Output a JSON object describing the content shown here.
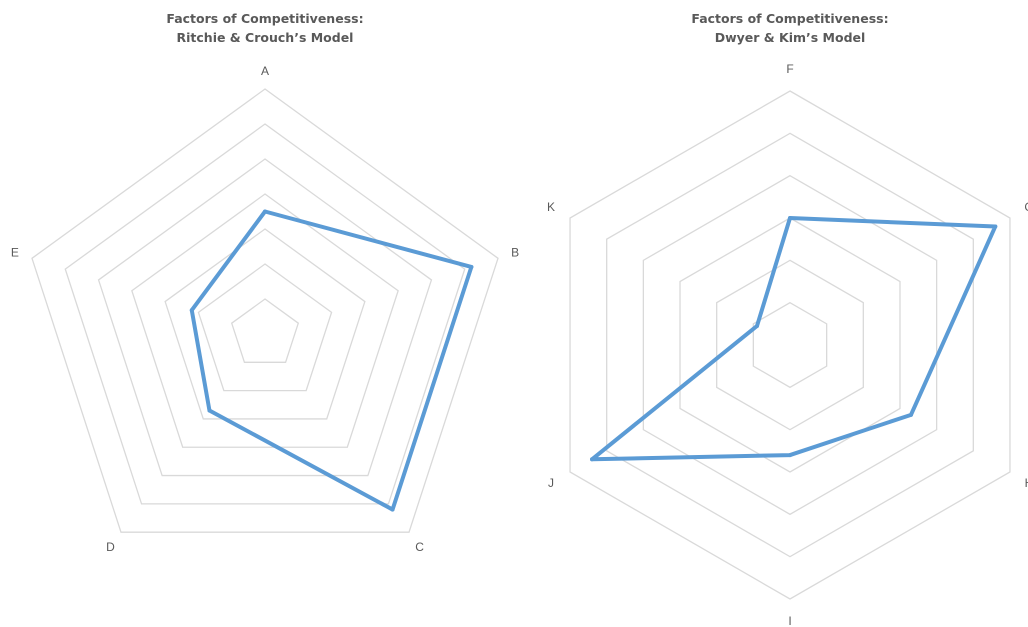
{
  "chart_data": [
    {
      "type": "radar",
      "title_line1": "Factors of Competitiveness:",
      "title_line2": "Ritchie & Crouch’s Model",
      "categories": [
        "A",
        "B",
        "C",
        "D",
        "E"
      ],
      "grid_levels": 7,
      "rlim": [
        0,
        7
      ],
      "values": [
        3.5,
        6.2,
        6.2,
        2.7,
        2.2
      ],
      "color": "#5b9bd5",
      "grid_color": "#d9d9d9"
    },
    {
      "type": "radar",
      "title_line1": "Factors of Competitiveness:",
      "title_line2": "Dwyer & Kim’s Model",
      "categories": [
        "F",
        "G",
        "H",
        "I",
        "J",
        "K"
      ],
      "grid_levels": 6,
      "rlim": [
        0,
        6
      ],
      "values": [
        3,
        5.6,
        3.3,
        2.6,
        5.4,
        0.9
      ],
      "color": "#5b9bd5",
      "grid_color": "#d9d9d9"
    }
  ]
}
